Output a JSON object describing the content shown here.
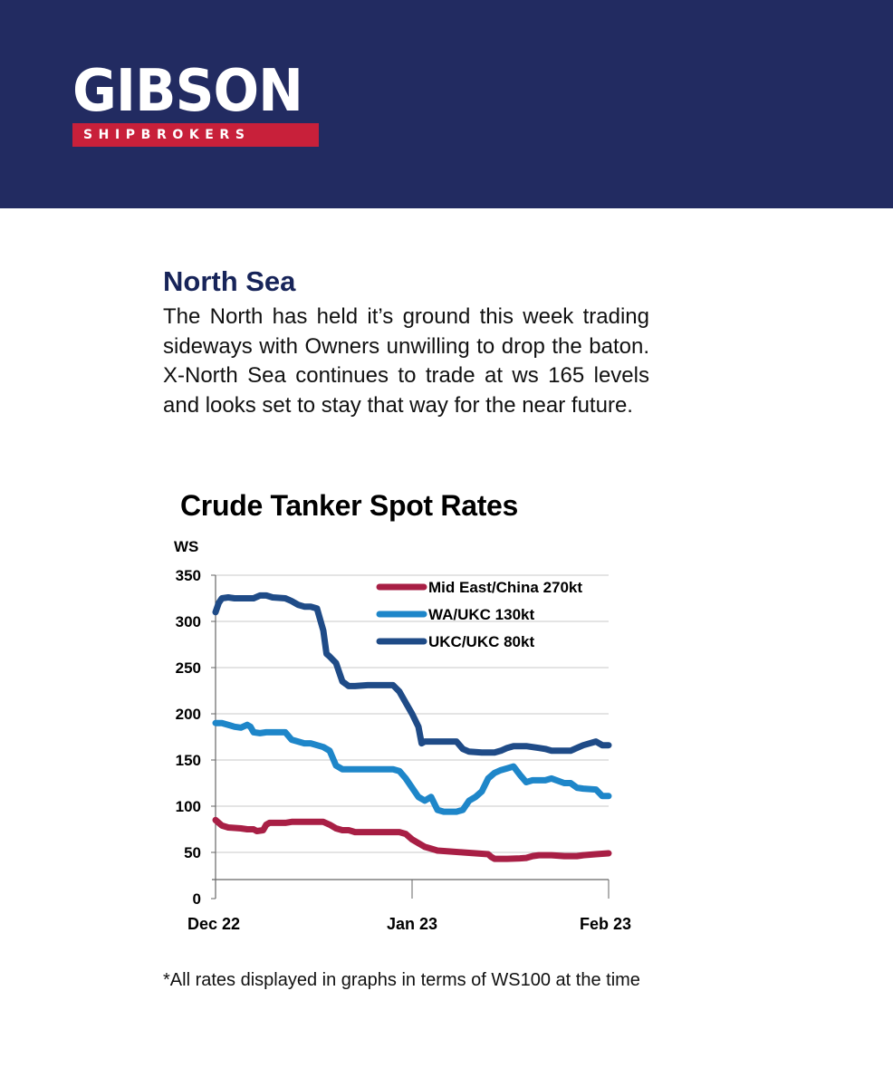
{
  "brand": {
    "name": "GIBSON",
    "tagline": "SHIPBROKERS",
    "colors": {
      "navy": "#222b61",
      "red": "#c8203a"
    }
  },
  "section": {
    "title": "North Sea",
    "body": "The North has held it’s ground this week trading sideways with Owners unwilling to drop the baton. X-North Sea continues to trade at ws 165 levels and looks set to stay that way for the near future."
  },
  "chart_data": {
    "type": "line",
    "title": "Crude Tanker Spot Rates",
    "ylabel": "WS",
    "xlabel": "",
    "ylim": [
      0,
      350
    ],
    "yticks": [
      0,
      50,
      100,
      150,
      200,
      250,
      300,
      350
    ],
    "xticks": [
      {
        "label": "Dec 22",
        "day": 0
      },
      {
        "label": "Jan 23",
        "day": 31
      },
      {
        "label": "Feb 23",
        "day": 62
      }
    ],
    "grid": true,
    "legend_position": "top-right",
    "series": [
      {
        "name": "Mid East/China 270kt",
        "color": "#a81f45",
        "points": [
          [
            0,
            85
          ],
          [
            1,
            79
          ],
          [
            2,
            77
          ],
          [
            4,
            76
          ],
          [
            5,
            75
          ],
          [
            6,
            75
          ],
          [
            6.5,
            73
          ],
          [
            7.5,
            74
          ],
          [
            8,
            80
          ],
          [
            8.5,
            82
          ],
          [
            11,
            82
          ],
          [
            12,
            83
          ],
          [
            14,
            83
          ],
          [
            17,
            83
          ],
          [
            18,
            80
          ],
          [
            19,
            76
          ],
          [
            20,
            74
          ],
          [
            21,
            74
          ],
          [
            21.5,
            73
          ],
          [
            22,
            72
          ],
          [
            25,
            72
          ],
          [
            28,
            72
          ],
          [
            29,
            72
          ],
          [
            30,
            70
          ],
          [
            31,
            64
          ],
          [
            32,
            60
          ],
          [
            33,
            56
          ],
          [
            34,
            54
          ],
          [
            35,
            52
          ],
          [
            37,
            51
          ],
          [
            39,
            50
          ],
          [
            41,
            49
          ],
          [
            43,
            48
          ],
          [
            43.5,
            45
          ],
          [
            44,
            43
          ],
          [
            46,
            43
          ],
          [
            48,
            43.5
          ],
          [
            49,
            44
          ],
          [
            50,
            46
          ],
          [
            51,
            47
          ],
          [
            53,
            47
          ],
          [
            55,
            46
          ],
          [
            57,
            46
          ],
          [
            58,
            47
          ],
          [
            60,
            48
          ],
          [
            62,
            49
          ]
        ]
      },
      {
        "name": "WA/UKC 130kt",
        "color": "#1e86c9",
        "points": [
          [
            0,
            190
          ],
          [
            1,
            190
          ],
          [
            2,
            188
          ],
          [
            3,
            186
          ],
          [
            4,
            185
          ],
          [
            5,
            188
          ],
          [
            5.5,
            186
          ],
          [
            6,
            180
          ],
          [
            7,
            179
          ],
          [
            8,
            180
          ],
          [
            11,
            180
          ],
          [
            12,
            172
          ],
          [
            14,
            168
          ],
          [
            15,
            168
          ],
          [
            17,
            164
          ],
          [
            18,
            160
          ],
          [
            19,
            144
          ],
          [
            20,
            140
          ],
          [
            21,
            140
          ],
          [
            22,
            140
          ],
          [
            27,
            140
          ],
          [
            28,
            140
          ],
          [
            29,
            138
          ],
          [
            30,
            130
          ],
          [
            31,
            120
          ],
          [
            32,
            110
          ],
          [
            33,
            106
          ],
          [
            34,
            110
          ],
          [
            35,
            96
          ],
          [
            36,
            94
          ],
          [
            38,
            94
          ],
          [
            39,
            96
          ],
          [
            40,
            106
          ],
          [
            41,
            110
          ],
          [
            42,
            116
          ],
          [
            43,
            130
          ],
          [
            44,
            136
          ],
          [
            45,
            139
          ],
          [
            46,
            141
          ],
          [
            47,
            143
          ],
          [
            48,
            134
          ],
          [
            49,
            126
          ],
          [
            50,
            128
          ],
          [
            52,
            128
          ],
          [
            53,
            130
          ],
          [
            55,
            125
          ],
          [
            56,
            125
          ],
          [
            57,
            120
          ],
          [
            58,
            119
          ],
          [
            60,
            118
          ],
          [
            61,
            111
          ],
          [
            62,
            111
          ]
        ]
      },
      {
        "name": "UKC/UKC 80kt",
        "color": "#1f4b87",
        "points": [
          [
            0,
            310
          ],
          [
            0.5,
            320
          ],
          [
            1,
            325
          ],
          [
            2,
            326
          ],
          [
            3,
            325
          ],
          [
            4,
            325
          ],
          [
            5,
            325
          ],
          [
            6,
            325
          ],
          [
            7,
            328
          ],
          [
            8,
            328
          ],
          [
            9,
            326
          ],
          [
            11,
            325
          ],
          [
            12,
            322
          ],
          [
            13,
            318
          ],
          [
            14,
            316
          ],
          [
            15,
            316
          ],
          [
            16,
            314
          ],
          [
            17,
            290
          ],
          [
            17.5,
            265
          ],
          [
            18,
            262
          ],
          [
            19,
            255
          ],
          [
            20,
            235
          ],
          [
            21,
            230
          ],
          [
            22,
            230
          ],
          [
            24,
            231
          ],
          [
            28,
            231
          ],
          [
            29,
            224
          ],
          [
            30,
            212
          ],
          [
            31,
            200
          ],
          [
            32,
            186
          ],
          [
            32.5,
            168
          ],
          [
            33,
            170
          ],
          [
            35,
            170
          ],
          [
            37,
            170
          ],
          [
            38,
            170
          ],
          [
            39,
            162
          ],
          [
            40,
            159
          ],
          [
            42,
            158
          ],
          [
            44,
            158
          ],
          [
            45,
            160
          ],
          [
            46,
            163
          ],
          [
            47,
            165
          ],
          [
            49,
            165
          ],
          [
            51,
            163
          ],
          [
            52,
            162
          ],
          [
            53,
            160
          ],
          [
            56,
            160
          ],
          [
            57,
            163
          ],
          [
            58,
            166
          ],
          [
            60,
            170
          ],
          [
            61,
            166
          ],
          [
            62,
            166
          ]
        ]
      }
    ]
  },
  "footnote": "*All rates displayed in graphs in terms of WS100 at the time"
}
